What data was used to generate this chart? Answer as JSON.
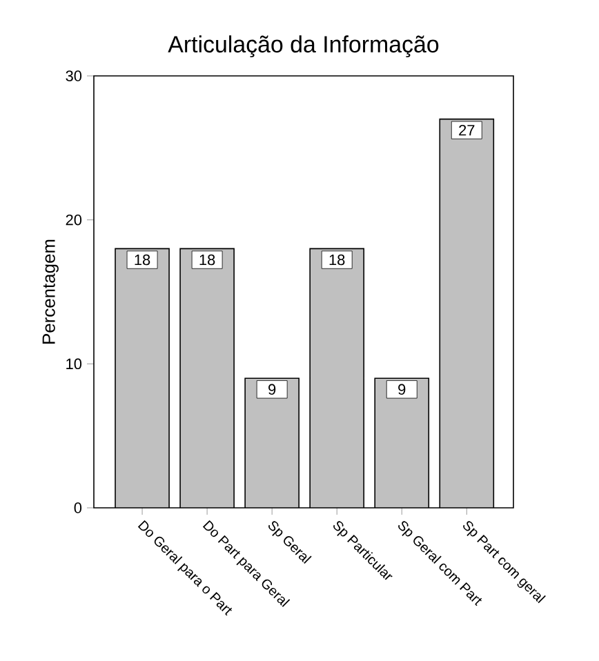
{
  "chart_data": {
    "type": "bar",
    "title": "Articulação da Informação",
    "ylabel": "Percentagem",
    "categories": [
      "Do Geral para o Part",
      "Do Part para Geral",
      "Sp Geral",
      "Sp Particular",
      "Sp Geral com Part",
      "Sp Part com geral"
    ],
    "values": [
      18,
      18,
      9,
      18,
      9,
      27
    ],
    "color": "#c0c0c0",
    "ylim": [
      0,
      30
    ],
    "yticks": [
      0,
      10,
      20,
      30
    ],
    "grid": false,
    "data_labels": true
  }
}
